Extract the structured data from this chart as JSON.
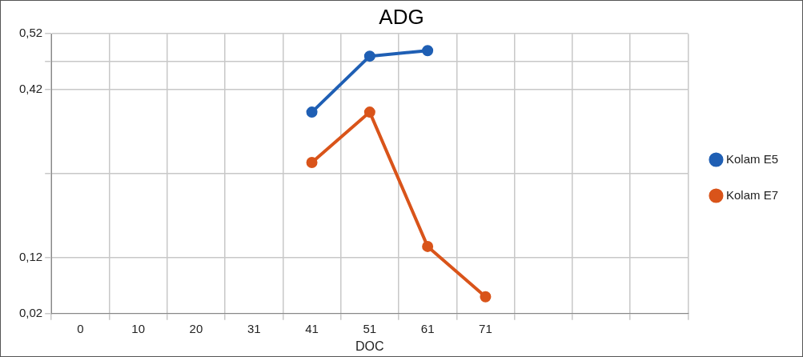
{
  "chart_data": {
    "type": "line",
    "title": "ADG",
    "xlabel": "DOC",
    "categories": [
      "0",
      "10",
      "20",
      "31",
      "41",
      "51",
      "61",
      "71",
      null,
      null,
      null
    ],
    "series": [
      {
        "name": "Kolam E5",
        "color": "#1f5fb4",
        "values": [
          null,
          null,
          null,
          null,
          0.38,
          0.48,
          0.49,
          null,
          null,
          null,
          null
        ]
      },
      {
        "name": "Kolam E7",
        "color": "#d9541a",
        "values": [
          null,
          null,
          null,
          null,
          0.29,
          0.38,
          0.14,
          0.05,
          null,
          null,
          null
        ]
      }
    ],
    "ylim": [
      0.02,
      0.52
    ],
    "yticks": [
      {
        "value": 0.02,
        "label": "0,02"
      },
      {
        "value": 0.12,
        "label": "0,12"
      },
      {
        "value": 0.27,
        "label": null
      },
      {
        "value": 0.42,
        "label": "0,42"
      },
      {
        "value": 0.47,
        "label": null
      },
      {
        "value": 0.52,
        "label": "0,52"
      }
    ],
    "grid": true,
    "legend": "right",
    "marker": "circle",
    "line_style": "solid"
  }
}
